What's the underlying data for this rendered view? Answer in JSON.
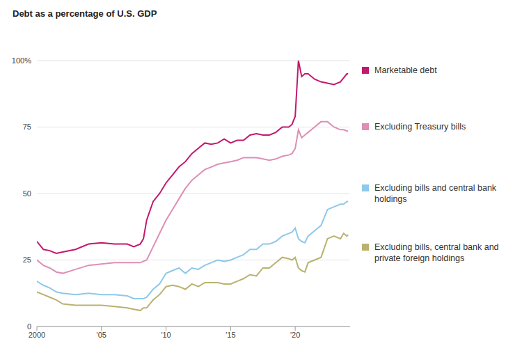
{
  "chart_data": {
    "type": "line",
    "title": "Debt as a percentage of U.S. GDP",
    "x": [
      2000,
      2000.5,
      2001,
      2001.5,
      2002,
      2003,
      2004,
      2005,
      2006,
      2007,
      2007.5,
      2008,
      2008.25,
      2008.5,
      2009,
      2009.5,
      2010,
      2010.5,
      2011,
      2011.5,
      2012,
      2012.5,
      2013,
      2013.5,
      2014,
      2014.5,
      2015,
      2015.5,
      2016,
      2016.5,
      2017,
      2017.5,
      2018,
      2018.5,
      2019,
      2019.5,
      2019.75,
      2020,
      2020.25,
      2020.5,
      2020.75,
      2021,
      2021.5,
      2022,
      2022.5,
      2023,
      2023.5,
      2023.75,
      2024,
      2024.1
    ],
    "series": [
      {
        "name": "Marketable debt",
        "color": "#c2186e",
        "values": [
          32,
          29,
          28.5,
          27.5,
          28,
          29,
          31,
          31.5,
          31,
          31,
          30,
          31,
          33,
          40,
          47,
          50,
          54,
          57,
          60,
          62,
          65,
          67,
          69,
          68.5,
          69,
          70.5,
          69,
          70,
          70,
          72,
          72.5,
          72,
          72,
          73,
          75,
          75,
          76,
          79,
          100,
          94,
          95,
          95,
          93,
          92,
          91.5,
          91,
          92,
          93.5,
          95,
          95
        ]
      },
      {
        "name": "Excluding Treasury bills",
        "color": "#dd8fb5",
        "values": [
          25,
          23,
          22,
          20.5,
          20,
          21.5,
          23,
          23.5,
          24,
          24,
          24,
          24,
          24.5,
          25,
          30,
          35,
          40,
          44,
          48,
          52,
          55,
          57,
          59,
          60,
          61,
          61.5,
          62,
          62.5,
          63.5,
          63.5,
          63.5,
          63,
          62.5,
          63,
          64,
          64.5,
          65,
          67,
          74,
          71,
          72,
          73,
          75,
          77,
          77,
          75,
          74,
          74,
          73.5,
          73.5
        ]
      },
      {
        "name": "Excluding bills and central bank holdings",
        "color": "#8ec8ea",
        "values": [
          17,
          15.5,
          14.5,
          13,
          12.5,
          12,
          12.5,
          12,
          12,
          11.5,
          10.5,
          10.5,
          10.5,
          11,
          14,
          16,
          20,
          21,
          22,
          20,
          22,
          21.5,
          23,
          24,
          25,
          24.5,
          25,
          26,
          27,
          29,
          29,
          31,
          31,
          32,
          34,
          35,
          35.5,
          37,
          33,
          32,
          31.5,
          34,
          36,
          38,
          44,
          45,
          46,
          46,
          47,
          47
        ]
      },
      {
        "name": "Excluding bills, central bank and private foreign holdings",
        "color": "#bab26e",
        "values": [
          13,
          12,
          11,
          10,
          8.5,
          8,
          8,
          8,
          7.5,
          7,
          6.5,
          6,
          7,
          7,
          10,
          12,
          15,
          15.5,
          15,
          14,
          16,
          15,
          16.5,
          16.5,
          16.5,
          16,
          16,
          17,
          18,
          19.5,
          19,
          22,
          22,
          24,
          26,
          25.5,
          25,
          26,
          22,
          21,
          20.5,
          24,
          25,
          26,
          33,
          34,
          33,
          35,
          34,
          34.5
        ]
      }
    ],
    "xlim": [
      2000,
      2024.25
    ],
    "xticks": [
      2000,
      {
        "value": 2005,
        "label": "'05"
      },
      {
        "value": 2010,
        "label": "'10"
      },
      {
        "value": 2015,
        "label": "'15"
      },
      {
        "value": 2020,
        "label": "'20"
      }
    ],
    "ylim": [
      0,
      100
    ],
    "yticks": [
      0,
      25,
      50,
      75,
      {
        "value": 100,
        "label": "100%"
      }
    ],
    "grid": true,
    "legend": "right"
  }
}
